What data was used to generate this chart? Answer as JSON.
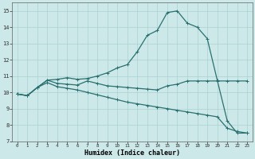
{
  "xlabel": "Humidex (Indice chaleur)",
  "bg_color": "#cce8e8",
  "line_color": "#2a7070",
  "grid_color": "#aad0d0",
  "xlim": [
    -0.5,
    23.5
  ],
  "ylim": [
    7,
    15.5
  ],
  "yticks": [
    7,
    8,
    9,
    10,
    11,
    12,
    13,
    14,
    15
  ],
  "xticks": [
    0,
    1,
    2,
    3,
    4,
    5,
    6,
    7,
    8,
    9,
    10,
    11,
    12,
    13,
    14,
    15,
    16,
    17,
    18,
    19,
    20,
    21,
    22,
    23
  ],
  "line1_x": [
    0,
    1,
    2,
    3,
    4,
    5,
    6,
    7,
    8,
    9,
    10,
    11,
    12,
    13,
    14,
    15,
    16,
    17,
    18,
    19,
    20,
    21,
    22,
    23
  ],
  "line1_y": [
    9.9,
    9.8,
    10.3,
    10.75,
    10.8,
    10.9,
    10.8,
    10.85,
    11.0,
    11.2,
    11.5,
    11.7,
    12.5,
    13.5,
    13.8,
    14.9,
    15.0,
    14.25,
    14.0,
    13.3,
    10.75,
    8.25,
    7.5,
    7.5
  ],
  "line2_x": [
    0,
    1,
    2,
    3,
    4,
    5,
    6,
    7,
    8,
    9,
    10,
    11,
    12,
    13,
    14,
    15,
    16,
    17,
    18,
    19,
    20,
    21,
    22,
    23
  ],
  "line2_y": [
    9.9,
    9.8,
    10.3,
    10.75,
    10.55,
    10.5,
    10.45,
    10.7,
    10.55,
    10.4,
    10.35,
    10.3,
    10.25,
    10.2,
    10.15,
    10.4,
    10.5,
    10.7,
    10.7,
    10.7,
    10.7,
    10.7,
    10.7,
    10.7
  ],
  "line3_x": [
    0,
    1,
    2,
    3,
    4,
    5,
    6,
    7,
    8,
    9,
    10,
    11,
    12,
    13,
    14,
    15,
    16,
    17,
    18,
    19,
    20,
    21,
    22,
    23
  ],
  "line3_y": [
    9.9,
    9.8,
    10.3,
    10.6,
    10.35,
    10.25,
    10.15,
    10.0,
    9.85,
    9.7,
    9.55,
    9.4,
    9.3,
    9.2,
    9.1,
    9.0,
    8.9,
    8.8,
    8.7,
    8.6,
    8.5,
    7.8,
    7.6,
    7.5
  ]
}
